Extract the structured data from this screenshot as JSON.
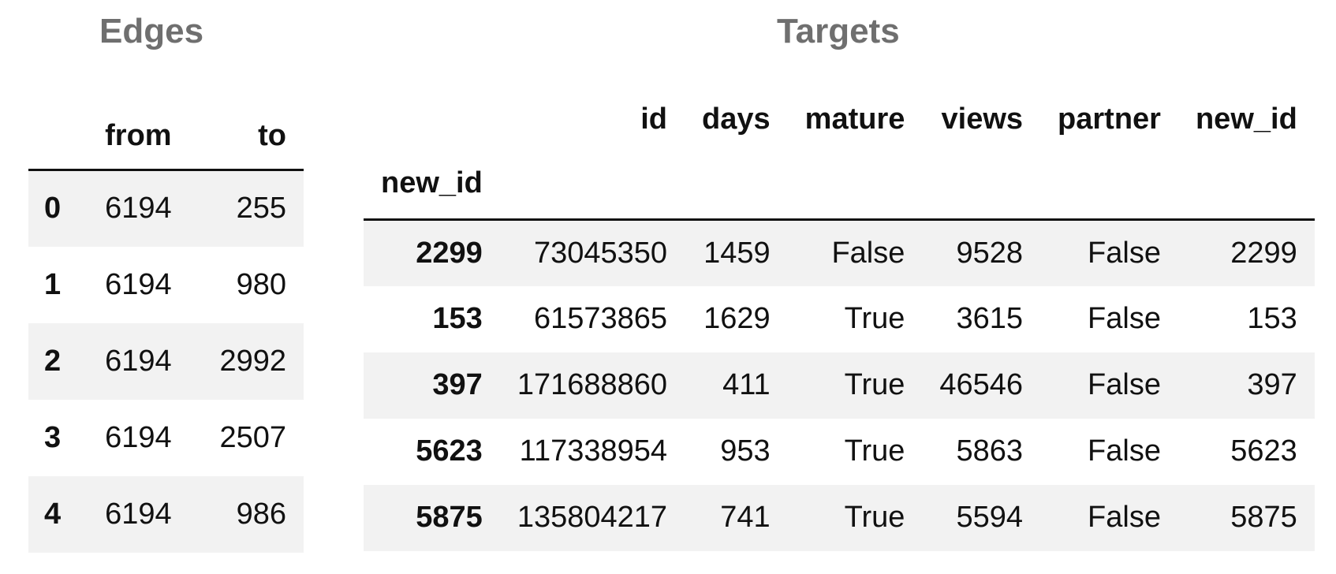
{
  "edges": {
    "title": "Edges",
    "columns": [
      "from",
      "to"
    ],
    "rows": [
      {
        "index": "0",
        "from": "6194",
        "to": "255"
      },
      {
        "index": "1",
        "from": "6194",
        "to": "980"
      },
      {
        "index": "2",
        "from": "6194",
        "to": "2992"
      },
      {
        "index": "3",
        "from": "6194",
        "to": "2507"
      },
      {
        "index": "4",
        "from": "6194",
        "to": "986"
      }
    ]
  },
  "targets": {
    "title": "Targets",
    "index_name": "new_id",
    "columns": [
      "id",
      "days",
      "mature",
      "views",
      "partner",
      "new_id"
    ],
    "rows": [
      {
        "index": "2299",
        "id": "73045350",
        "days": "1459",
        "mature": "False",
        "views": "9528",
        "partner": "False",
        "new_id": "2299"
      },
      {
        "index": "153",
        "id": "61573865",
        "days": "1629",
        "mature": "True",
        "views": "3615",
        "partner": "False",
        "new_id": "153"
      },
      {
        "index": "397",
        "id": "171688860",
        "days": "411",
        "mature": "True",
        "views": "46546",
        "partner": "False",
        "new_id": "397"
      },
      {
        "index": "5623",
        "id": "117338954",
        "days": "953",
        "mature": "True",
        "views": "5863",
        "partner": "False",
        "new_id": "5623"
      },
      {
        "index": "5875",
        "id": "135804217",
        "days": "741",
        "mature": "True",
        "views": "5594",
        "partner": "False",
        "new_id": "5875"
      }
    ]
  }
}
